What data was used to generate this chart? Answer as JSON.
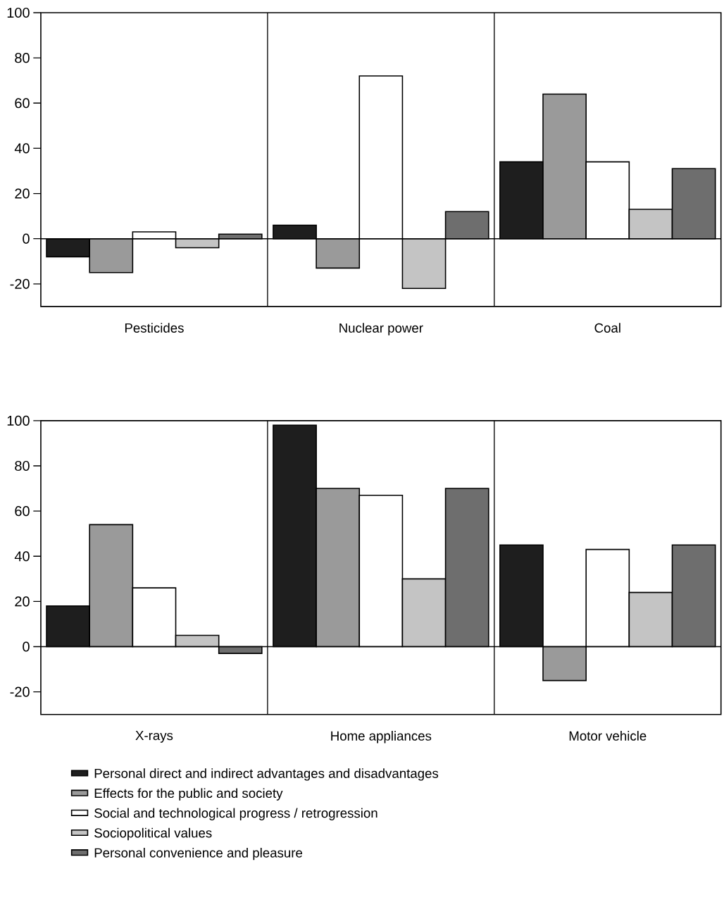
{
  "chart_data": [
    {
      "type": "bar",
      "categories": [
        "Pesticides",
        "Nuclear power",
        "Coal"
      ],
      "series": [
        {
          "color": "#1e1e1e",
          "values": [
            -8,
            6,
            34
          ]
        },
        {
          "color": "#9a9a9a",
          "values": [
            -15,
            -13,
            64
          ]
        },
        {
          "color": "#ffffff",
          "values": [
            3,
            72,
            34
          ]
        },
        {
          "color": "#c4c4c4",
          "values": [
            -4,
            -22,
            13
          ]
        },
        {
          "color": "#6e6e6e",
          "values": [
            2,
            12,
            31
          ]
        }
      ],
      "ylim": [
        -30,
        100
      ],
      "yticks": [
        -20,
        0,
        20,
        40,
        60,
        80,
        100
      ],
      "grid": false,
      "legend": false,
      "ref_lines": [
        {
          "axis": "y",
          "value": 0
        }
      ]
    },
    {
      "type": "bar",
      "categories": [
        "X-rays",
        "Home appliances",
        "Motor vehicle"
      ],
      "series": [
        {
          "name": "Personal direct and indirect advantages and disadvantages",
          "color": "#1e1e1e",
          "values": [
            18,
            98,
            45
          ]
        },
        {
          "name": "Effects for the public and society",
          "color": "#9a9a9a",
          "values": [
            54,
            70,
            -15
          ]
        },
        {
          "name": "Social and technological progress / retrogression",
          "color": "#ffffff",
          "values": [
            26,
            67,
            43
          ]
        },
        {
          "name": "Sociopolitical values",
          "color": "#c4c4c4",
          "values": [
            5,
            30,
            24
          ]
        },
        {
          "name": "Personal convenience and pleasure",
          "color": "#6e6e6e",
          "values": [
            -3,
            70,
            45
          ]
        }
      ],
      "ylim": [
        -30,
        100
      ],
      "yticks": [
        -20,
        0,
        20,
        40,
        60,
        80,
        100
      ],
      "grid": false,
      "legend": "bottom",
      "ref_lines": [
        {
          "axis": "y",
          "value": 0
        }
      ]
    }
  ]
}
